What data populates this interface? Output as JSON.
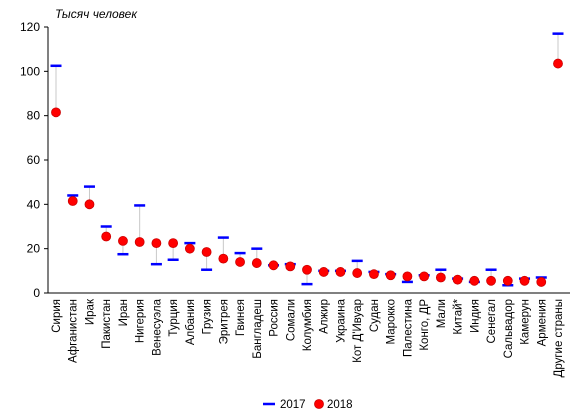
{
  "chart_data": {
    "type": "scatter",
    "unit_label": "Тысяч человек",
    "ylim": [
      0,
      120
    ],
    "yticks": [
      "0",
      "20",
      "40",
      "60",
      "80",
      "100",
      "120"
    ],
    "grid": false,
    "legend_position": "bottom",
    "categories": [
      "Сирия",
      "Афганистан",
      "Ирак",
      "Пакистан",
      "Иран",
      "Нигерия",
      "Венесуэла",
      "Турция",
      "Албания",
      "Грузия",
      "Эритрея",
      "Гвинея",
      "Бангладеш",
      "Россия",
      "Сомали",
      "Колумбия",
      "Алжир",
      "Украина",
      "Кот Д'Ивуар",
      "Судан",
      "Марокко",
      "Палестина",
      "Конго, ДР",
      "Мали",
      "Китай*",
      "Индия",
      "Сенегал",
      "Сальвадор",
      "Камерун",
      "Армения",
      "Другие страны"
    ],
    "series": [
      {
        "name": "2017",
        "marker": "dash",
        "color": "#0000ff",
        "values": [
          102.5,
          44,
          48,
          30,
          17.5,
          39.5,
          13,
          15,
          22.5,
          10.5,
          25,
          18,
          20,
          12.5,
          13,
          4,
          10,
          10,
          14.5,
          9.5,
          8.5,
          5,
          8,
          10.5,
          6.5,
          5,
          10.5,
          3.5,
          6.5,
          7,
          117
        ]
      },
      {
        "name": "2018",
        "marker": "circle",
        "color": "#ff0000",
        "values": [
          81.5,
          41.5,
          40,
          25.5,
          23.5,
          23,
          22.5,
          22.5,
          20,
          18.5,
          15.5,
          14,
          13.5,
          12.5,
          12,
          10.5,
          9.5,
          9.5,
          9,
          8.5,
          8,
          7.5,
          7.5,
          7,
          6,
          5.5,
          5.5,
          5.5,
          5.5,
          5,
          103.5
        ]
      }
    ]
  }
}
